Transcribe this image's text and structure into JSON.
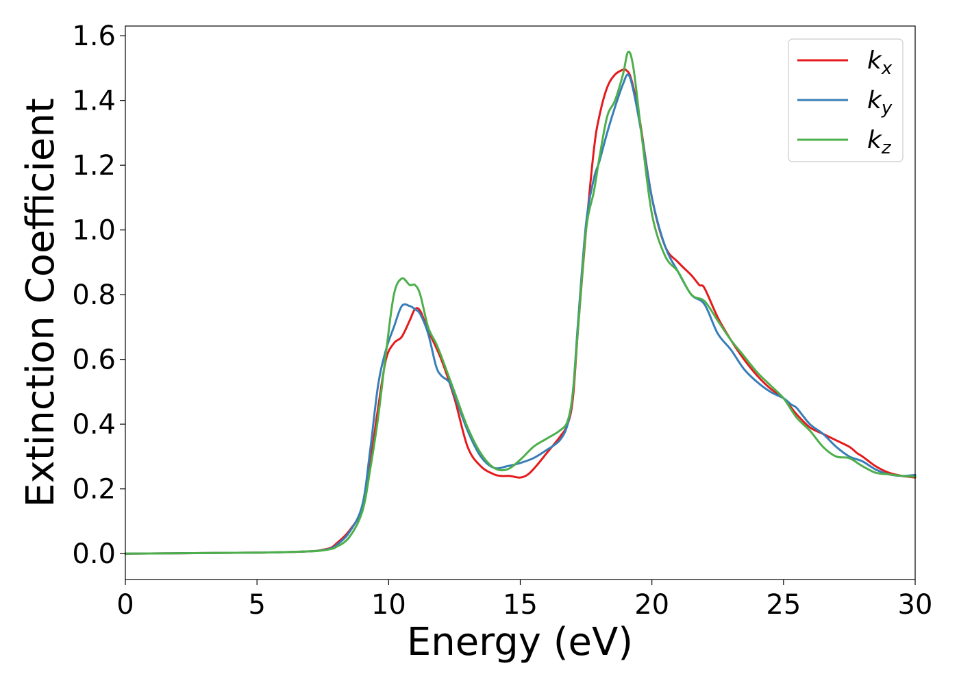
{
  "chart_data": {
    "type": "line",
    "title": "",
    "xlabel": "Energy (eV)",
    "ylabel": "Extinction Coefficient",
    "xlim": [
      0,
      30
    ],
    "ylim": [
      -0.08,
      1.63
    ],
    "xticks": [
      0,
      5,
      10,
      15,
      20,
      25,
      30
    ],
    "yticks": [
      0.0,
      0.2,
      0.4,
      0.6,
      0.8,
      1.0,
      1.2,
      1.4,
      1.6
    ],
    "grid": false,
    "legend_position": "top-right",
    "series": [
      {
        "name": "k",
        "subscript": "x",
        "color": "#e41a1c",
        "x": [
          0,
          5,
          7,
          7.5,
          7.8,
          8.0,
          8.5,
          9.0,
          9.3,
          9.6,
          9.9,
          10.2,
          10.5,
          10.8,
          11.0,
          11.2,
          11.5,
          12.0,
          12.5,
          13.0,
          13.5,
          14.0,
          14.3,
          14.6,
          15.0,
          15.3,
          15.6,
          16.0,
          16.5,
          16.8,
          17.0,
          17.2,
          17.5,
          17.8,
          18.0,
          18.3,
          18.6,
          18.9,
          19.0,
          19.2,
          19.5,
          20.0,
          20.5,
          21.0,
          21.5,
          21.8,
          22.0,
          22.5,
          23.0,
          23.5,
          24.0,
          24.5,
          25.0,
          25.5,
          26.0,
          26.5,
          27.0,
          27.5,
          27.8,
          28.0,
          28.5,
          29.0,
          29.5,
          30.0
        ],
        "y": [
          0.0,
          0.003,
          0.007,
          0.012,
          0.018,
          0.03,
          0.07,
          0.14,
          0.28,
          0.45,
          0.6,
          0.65,
          0.67,
          0.72,
          0.755,
          0.75,
          0.69,
          0.6,
          0.48,
          0.33,
          0.27,
          0.245,
          0.24,
          0.24,
          0.235,
          0.245,
          0.27,
          0.31,
          0.36,
          0.4,
          0.48,
          0.7,
          1.0,
          1.25,
          1.35,
          1.44,
          1.48,
          1.495,
          1.495,
          1.47,
          1.36,
          1.1,
          0.95,
          0.9,
          0.86,
          0.83,
          0.82,
          0.73,
          0.66,
          0.6,
          0.55,
          0.51,
          0.48,
          0.43,
          0.39,
          0.37,
          0.35,
          0.33,
          0.31,
          0.3,
          0.27,
          0.25,
          0.24,
          0.235
        ]
      },
      {
        "name": "k",
        "subscript": "y",
        "color": "#377eb8",
        "x": [
          0,
          5,
          7,
          7.5,
          7.8,
          8.0,
          8.5,
          9.0,
          9.3,
          9.6,
          9.9,
          10.2,
          10.5,
          10.8,
          11.0,
          11.2,
          11.5,
          11.8,
          12.0,
          12.3,
          12.5,
          13.0,
          13.5,
          14.0,
          14.5,
          15.0,
          15.5,
          16.0,
          16.5,
          16.8,
          17.0,
          17.2,
          17.5,
          17.8,
          18.0,
          18.3,
          18.6,
          18.9,
          19.1,
          19.3,
          19.6,
          20.0,
          20.5,
          21.0,
          21.5,
          22.0,
          22.5,
          23.0,
          23.5,
          24.0,
          24.5,
          25.0,
          25.3,
          25.5,
          26.0,
          26.5,
          27.0,
          27.5,
          28.0,
          28.5,
          29.0,
          29.5,
          30.0
        ],
        "y": [
          0.0,
          0.003,
          0.007,
          0.011,
          0.016,
          0.025,
          0.065,
          0.15,
          0.32,
          0.52,
          0.63,
          0.7,
          0.765,
          0.765,
          0.755,
          0.74,
          0.68,
          0.58,
          0.55,
          0.53,
          0.49,
          0.38,
          0.3,
          0.265,
          0.27,
          0.28,
          0.295,
          0.32,
          0.35,
          0.4,
          0.5,
          0.72,
          1.02,
          1.16,
          1.21,
          1.3,
          1.38,
          1.45,
          1.48,
          1.43,
          1.3,
          1.1,
          0.95,
          0.87,
          0.8,
          0.77,
          0.68,
          0.63,
          0.57,
          0.53,
          0.5,
          0.48,
          0.46,
          0.45,
          0.4,
          0.37,
          0.33,
          0.3,
          0.285,
          0.26,
          0.245,
          0.24,
          0.243
        ]
      },
      {
        "name": "k",
        "subscript": "z",
        "color": "#4daf4a",
        "x": [
          0,
          5,
          7,
          7.5,
          7.8,
          8.0,
          8.5,
          9.0,
          9.3,
          9.6,
          9.9,
          10.2,
          10.5,
          10.8,
          11.0,
          11.2,
          11.5,
          11.8,
          12.0,
          12.5,
          13.0,
          13.5,
          14.0,
          14.5,
          15.0,
          15.5,
          16.0,
          16.5,
          16.8,
          17.0,
          17.2,
          17.5,
          17.8,
          18.0,
          18.3,
          18.6,
          18.9,
          19.1,
          19.3,
          19.6,
          20.0,
          20.5,
          21.0,
          21.5,
          22.0,
          22.5,
          23.0,
          23.5,
          24.0,
          24.5,
          25.0,
          25.5,
          26.0,
          26.5,
          27.0,
          27.5,
          28.0,
          28.5,
          29.0,
          29.5,
          30.0
        ],
        "y": [
          0.0,
          0.003,
          0.007,
          0.01,
          0.014,
          0.02,
          0.05,
          0.13,
          0.26,
          0.42,
          0.62,
          0.8,
          0.85,
          0.83,
          0.83,
          0.8,
          0.7,
          0.65,
          0.61,
          0.5,
          0.39,
          0.31,
          0.265,
          0.26,
          0.29,
          0.33,
          0.355,
          0.38,
          0.41,
          0.5,
          0.7,
          1.0,
          1.12,
          1.22,
          1.35,
          1.4,
          1.48,
          1.55,
          1.5,
          1.3,
          1.05,
          0.92,
          0.87,
          0.8,
          0.78,
          0.72,
          0.66,
          0.61,
          0.56,
          0.52,
          0.48,
          0.42,
          0.38,
          0.33,
          0.3,
          0.295,
          0.27,
          0.25,
          0.245,
          0.24,
          0.238
        ]
      }
    ]
  }
}
